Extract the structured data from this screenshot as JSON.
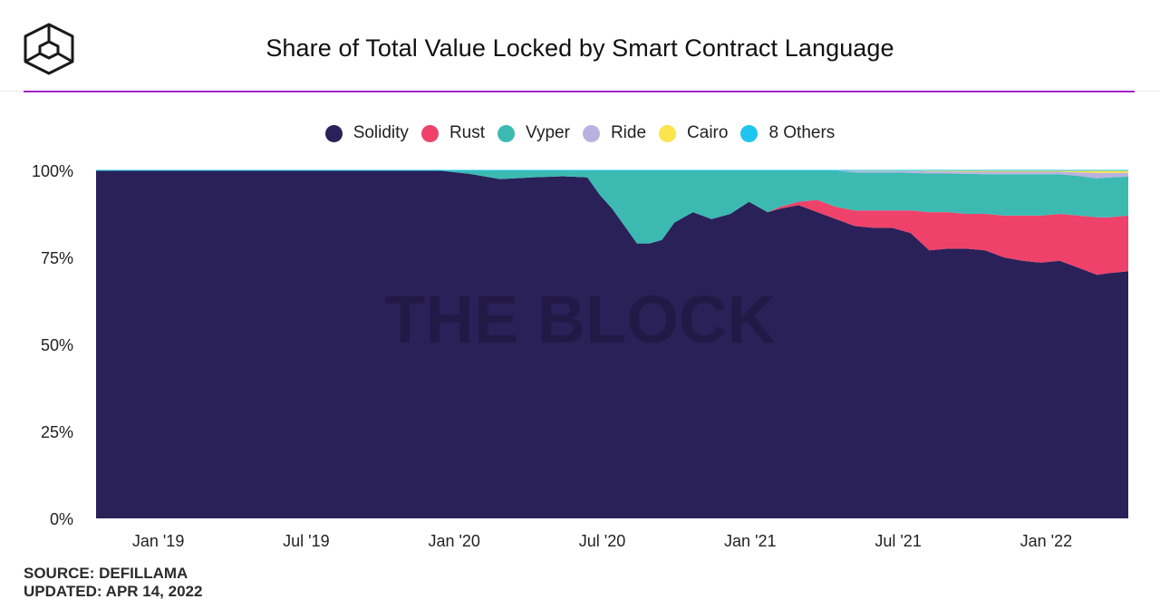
{
  "header": {
    "title": "Share of Total Value Locked by Smart Contract Language",
    "logo_icon": "the-block-cube-icon"
  },
  "watermark": "THE BLOCK",
  "footer": {
    "source": "SOURCE: DEFILLAMA",
    "updated": "UPDATED: APR 14, 2022"
  },
  "colors": {
    "accent_rule": "#a324c9",
    "Solidity": "#2a2159",
    "Rust": "#ee426a",
    "Vyper": "#3cbab2",
    "Ride": "#b9b2e0",
    "Cairo": "#fde34c",
    "8 Others": "#1ec5ef"
  },
  "chart_data": {
    "type": "area",
    "stacked": true,
    "normalized": true,
    "title": "Share of Total Value Locked by Smart Contract Language",
    "ylim": [
      0,
      100
    ],
    "y_ticks": [
      "0%",
      "25%",
      "50%",
      "75%",
      "100%"
    ],
    "x_ticks": [
      "Jan '19",
      "Jul '19",
      "Jan '20",
      "Jul '20",
      "Jan '21",
      "Jul '21",
      "Jan '22"
    ],
    "x_range_months": [
      -1.0,
      15.6
    ],
    "x_tick_months": [
      0,
      2.38,
      4.76,
      7.14,
      9.52,
      11.9,
      14.28
    ],
    "legend_position": "top-center",
    "x": [
      -1.0,
      0.0,
      2.0,
      4.0,
      4.5,
      5.0,
      5.5,
      6.0,
      6.5,
      6.9,
      7.1,
      7.3,
      7.5,
      7.7,
      7.9,
      8.1,
      8.3,
      8.6,
      8.9,
      9.2,
      9.5,
      9.8,
      10.0,
      10.3,
      10.6,
      10.9,
      11.2,
      11.5,
      11.8,
      12.1,
      12.4,
      12.7,
      13.0,
      13.3,
      13.6,
      13.9,
      14.2,
      14.5,
      14.8,
      15.1,
      15.3,
      15.6
    ],
    "series": [
      {
        "name": "Solidity",
        "values": [
          100,
          100,
          100,
          100,
          100,
          99.0,
          97.5,
          98.0,
          98.3,
          98.0,
          93.0,
          89.0,
          84.0,
          79.0,
          79.0,
          80.0,
          85.0,
          88.0,
          86.0,
          87.5,
          91.0,
          88.0,
          89.0,
          90.0,
          88.0,
          86.0,
          84.0,
          83.5,
          83.5,
          82.0,
          77.0,
          77.5,
          77.5,
          77.0,
          75.0,
          74.0,
          73.5,
          74.0,
          72.0,
          70.0,
          70.5,
          71.0
        ]
      },
      {
        "name": "Rust",
        "values": [
          0,
          0,
          0,
          0,
          0,
          0,
          0,
          0,
          0,
          0,
          0,
          0,
          0,
          0,
          0,
          0,
          0,
          0,
          0,
          0,
          0,
          0,
          0.5,
          1.0,
          3.5,
          3.5,
          4.5,
          5.0,
          5.0,
          6.5,
          11.0,
          10.5,
          10.0,
          10.5,
          12.0,
          13.0,
          13.5,
          13.5,
          15.0,
          16.5,
          16.0,
          16.0
        ]
      },
      {
        "name": "Vyper",
        "values": [
          0,
          0,
          0,
          0,
          0,
          1.0,
          2.5,
          2.0,
          1.7,
          2.0,
          7.0,
          11.0,
          16.0,
          21.0,
          21.0,
          20.0,
          15.0,
          12.0,
          14.0,
          12.5,
          9.0,
          12.0,
          10.5,
          9.0,
          8.5,
          10.4,
          10.9,
          10.9,
          10.9,
          10.8,
          11.1,
          11.1,
          11.5,
          11.4,
          11.9,
          11.9,
          11.9,
          11.4,
          11.4,
          11.2,
          11.5,
          11.2
        ]
      },
      {
        "name": "Ride",
        "values": [
          0,
          0,
          0,
          0,
          0,
          0,
          0,
          0,
          0,
          0,
          0,
          0,
          0,
          0,
          0,
          0,
          0,
          0,
          0,
          0,
          0,
          0,
          0,
          0,
          0,
          0.1,
          0.4,
          0.4,
          0.4,
          0.5,
          0.6,
          0.6,
          0.6,
          0.7,
          0.7,
          0.7,
          0.7,
          0.7,
          1.0,
          1.6,
          1.3,
          1.1
        ]
      },
      {
        "name": "Cairo",
        "values": [
          0,
          0,
          0,
          0,
          0,
          0,
          0,
          0,
          0,
          0,
          0,
          0,
          0,
          0,
          0,
          0,
          0,
          0,
          0,
          0,
          0,
          0,
          0,
          0,
          0,
          0,
          0.2,
          0.2,
          0.2,
          0.2,
          0.3,
          0.3,
          0.4,
          0.4,
          0.4,
          0.4,
          0.4,
          0.4,
          0.6,
          0.7,
          0.7,
          0.7
        ]
      },
      {
        "name": "8 Others",
        "values": [
          0,
          0,
          0,
          0,
          0,
          0,
          0,
          0,
          0,
          0,
          0,
          0,
          0,
          0,
          0,
          0,
          0,
          0,
          0,
          0,
          0,
          0,
          0,
          0,
          0,
          0,
          0,
          0,
          0,
          0,
          0,
          0,
          0,
          0,
          0,
          0,
          0,
          0,
          0,
          0,
          0,
          0
        ]
      }
    ]
  }
}
